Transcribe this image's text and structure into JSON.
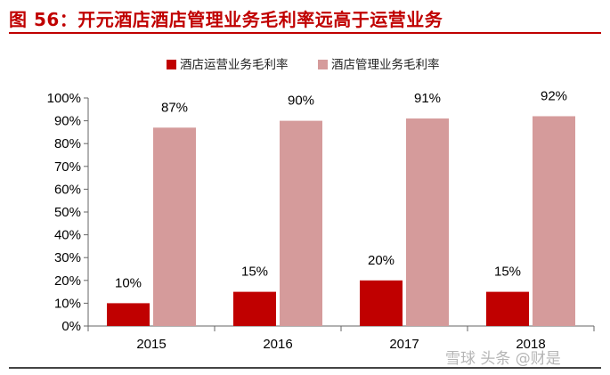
{
  "title": "图 56：开元酒店酒店管理业务毛利率远高于运营业务",
  "watermark": "雪球 头条 @财是",
  "colors": {
    "title": "#c00000",
    "series1": "#c00000",
    "series2": "#d59b9b"
  },
  "chart_data": {
    "type": "bar",
    "categories": [
      "2015",
      "2016",
      "2017",
      "2018"
    ],
    "series": [
      {
        "name": "酒店运营业务毛利率",
        "values": [
          10,
          15,
          20,
          15
        ],
        "labels": [
          "10%",
          "15%",
          "20%",
          "15%"
        ]
      },
      {
        "name": "酒店管理业务毛利率",
        "values": [
          87,
          90,
          91,
          92
        ],
        "labels": [
          "87%",
          "90%",
          "91%",
          "92%"
        ]
      }
    ],
    "ylim": [
      0,
      100
    ],
    "yticks": [
      "0%",
      "10%",
      "20%",
      "30%",
      "40%",
      "50%",
      "60%",
      "70%",
      "80%",
      "90%",
      "100%"
    ],
    "legend_position": "top-center",
    "grid": false
  }
}
